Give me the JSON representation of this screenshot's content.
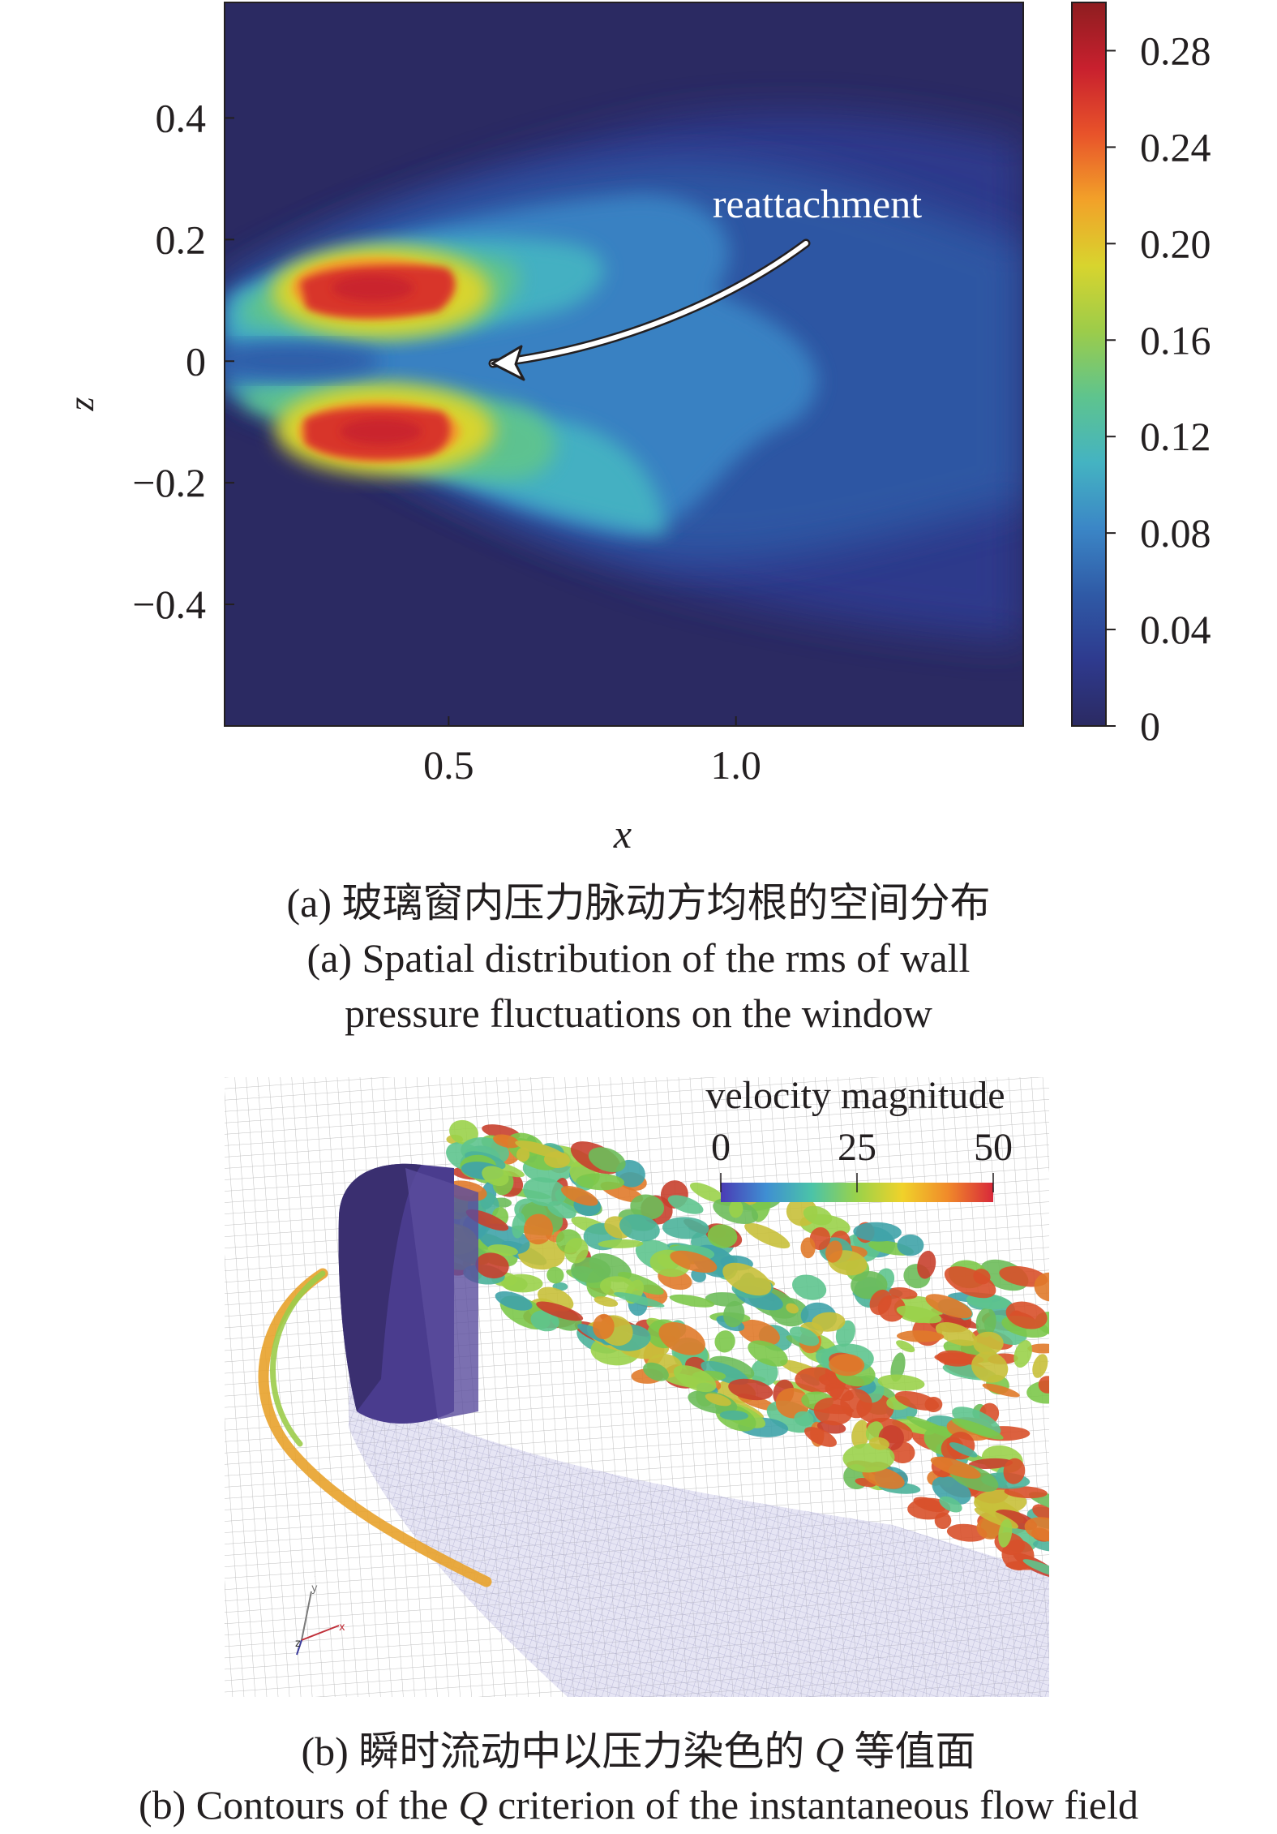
{
  "chart_data": [
    {
      "type": "heatmap",
      "title": "",
      "xlabel": "x",
      "ylabel": "z",
      "x_ticks": [
        "0.5",
        "1.0"
      ],
      "x_tick_values": [
        0.5,
        1.0
      ],
      "z_ticks": [
        "0.4",
        "0.2",
        "0",
        "−0.2",
        "−0.4"
      ],
      "z_tick_values": [
        0.4,
        0.2,
        0,
        -0.2,
        -0.4
      ],
      "xlim": [
        0.11,
        1.5
      ],
      "ylim": [
        -0.6,
        0.59
      ],
      "colorbar": {
        "ticks": [
          "0.28",
          "0.24",
          "0.20",
          "0.16",
          "0.12",
          "0.08",
          "0.04",
          "0"
        ],
        "tick_values": [
          0.28,
          0.24,
          0.2,
          0.16,
          0.12,
          0.08,
          0.04,
          0
        ],
        "range": [
          0,
          0.3
        ],
        "colors": [
          "#2b2a62",
          "#2e3a8e",
          "#2f5aa6",
          "#3b86c6",
          "#44b3c2",
          "#5ec48e",
          "#9ccc4a",
          "#d8d42e",
          "#f2a129",
          "#e8532a",
          "#c8202e",
          "#8e1d20"
        ]
      },
      "annotations": [
        {
          "text": "reattachment"
        }
      ],
      "features": [
        {
          "name": "upper high-rms lobe",
          "x": 0.32,
          "z": 0.12,
          "value": 0.28
        },
        {
          "name": "lower high-rms lobe",
          "x": 0.34,
          "z": -0.11,
          "value": 0.28
        },
        {
          "name": "reattachment point",
          "x": 0.58,
          "z": 0.0
        }
      ]
    }
  ],
  "panel_b": {
    "legend_title": "velocity magnitude",
    "legend_ticks": [
      "0",
      "25",
      "50"
    ],
    "legend_range": [
      0,
      50
    ],
    "legend_colors": [
      "#4a3cb5",
      "#3f8fd2",
      "#4bc3a8",
      "#9ad24a",
      "#f0d22a",
      "#f08a2a",
      "#d8283a"
    ],
    "axis_triad": [
      "y",
      "x",
      "z"
    ]
  },
  "captions": {
    "a_cn": "(a) 玻璃窗内压力脉动方均根的空间分布",
    "a_en_line1": "(a) Spatial distribution of the rms of wall",
    "a_en_line2": "pressure fluctuations on the window",
    "b_cn_prefix": "(b) 瞬时流动中以压力染色的 ",
    "b_cn_q": "Q",
    "b_cn_suffix": " 等值面",
    "b_en_prefix": "(b) Contours of the ",
    "b_en_q": "Q",
    "b_en_suffix": " criterion of the instantaneous flow field"
  }
}
